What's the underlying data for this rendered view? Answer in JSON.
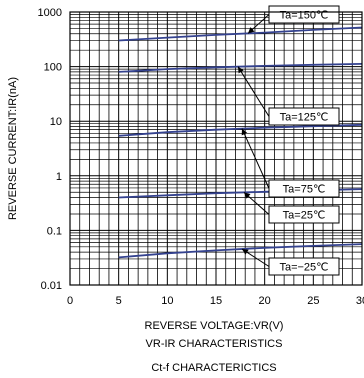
{
  "chart_data": {
    "type": "line",
    "xlabel": "REVERSE VOLTAGE:VR(V)",
    "ylabel": "REVERSE CURRENT:IR(nA)",
    "xlim": [
      0,
      30
    ],
    "ylim": [
      0.01,
      1000
    ],
    "yscale": "log",
    "x_ticks": [
      "0",
      "5",
      "10",
      "15",
      "20",
      "25",
      "30"
    ],
    "y_ticks": [
      "0.01",
      "0.1",
      "1",
      "10",
      "100",
      "1000"
    ],
    "grid": true,
    "captions": [
      "VR-IR CHARACTERISTICS",
      "Ct-f CHARACTERICTICS"
    ],
    "series": [
      {
        "name": "Ta=150℃",
        "x": [
          5,
          10,
          15,
          20,
          25,
          30
        ],
        "y": [
          300,
          340,
          380,
          420,
          470,
          520
        ]
      },
      {
        "name": "Ta=125℃",
        "x": [
          5,
          10,
          15,
          20,
          25,
          30
        ],
        "y": [
          80,
          90,
          97,
          103,
          108,
          112
        ]
      },
      {
        "name": "Ta=75℃",
        "x": [
          5,
          10,
          15,
          20,
          25,
          30
        ],
        "y": [
          5.4,
          6.3,
          7.0,
          7.6,
          8.1,
          8.6
        ]
      },
      {
        "name": "Ta=25℃",
        "x": [
          5,
          10,
          15,
          20,
          25,
          30
        ],
        "y": [
          0.4,
          0.44,
          0.48,
          0.51,
          0.54,
          0.57
        ]
      },
      {
        "name": "Ta=−25℃",
        "x": [
          5,
          10,
          15,
          20,
          25,
          30
        ],
        "y": [
          0.032,
          0.038,
          0.043,
          0.048,
          0.052,
          0.056
        ]
      }
    ],
    "colors": {
      "curve": "#34428f",
      "grid": "#000000",
      "background": "#ffffff"
    }
  }
}
